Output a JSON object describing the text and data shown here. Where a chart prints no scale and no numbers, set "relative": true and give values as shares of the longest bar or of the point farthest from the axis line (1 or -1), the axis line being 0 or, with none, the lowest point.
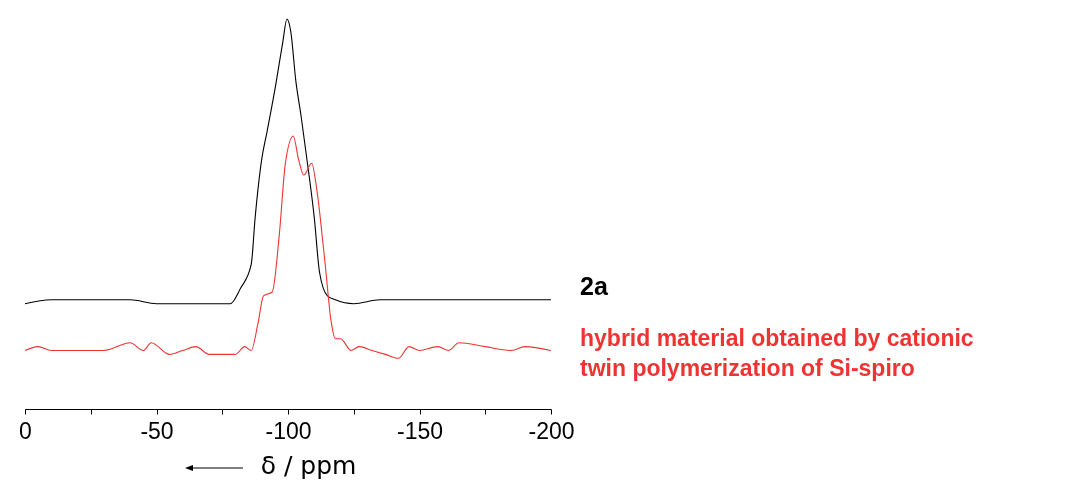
{
  "chart_data": {
    "type": "line",
    "xlabel": "δ / ppm",
    "relative": true,
    "legend": false,
    "xlim": [
      0,
      -200
    ],
    "xticks": [
      0,
      {
        "value": -25,
        "label": null
      },
      -50,
      {
        "value": -75,
        "label": null
      },
      -100,
      {
        "value": -125,
        "label": null
      },
      -150,
      {
        "value": -175,
        "label": null
      },
      -200
    ],
    "series": [
      {
        "name": "2a",
        "color": "#000000",
        "x": [
          0,
          -10,
          -25,
          -40,
          -50,
          -60,
          -70,
          -78,
          -82,
          -86,
          -87.5,
          -90,
          -92,
          -95.3,
          -98,
          -99.6,
          -101,
          -103,
          -105,
          -107,
          -110,
          -112,
          -115,
          -118,
          -125,
          -135,
          -150,
          -165,
          -180,
          -190,
          -200
        ],
        "values": [
          0.27,
          0.28,
          0.28,
          0.28,
          0.27,
          0.27,
          0.27,
          0.27,
          0.31,
          0.37,
          0.49,
          0.64,
          0.71,
          0.83,
          0.94,
          1.0,
          0.97,
          0.84,
          0.75,
          0.65,
          0.49,
          0.35,
          0.29,
          0.28,
          0.27,
          0.28,
          0.28,
          0.28,
          0.28,
          0.28,
          0.28
        ]
      },
      {
        "name": "hybrid material obtained by cationic\ntwin polymerization of Si-spiro",
        "color": "#ee3333",
        "x": [
          0,
          -5,
          -10,
          -20,
          -30,
          -40,
          -45,
          -48,
          -55,
          -60,
          -65,
          -70,
          -80,
          -83.5,
          -86,
          -88.6,
          -90.7,
          -94,
          -96.6,
          -99,
          -102,
          -104,
          -106,
          -109,
          -111,
          -114,
          -116.5,
          -118,
          -120,
          -124,
          -127,
          -132,
          -137,
          -142,
          -146,
          -150,
          -157,
          -161,
          -165,
          -175,
          -185,
          -190,
          -200
        ],
        "values": [
          0.15,
          0.16,
          0.15,
          0.15,
          0.15,
          0.17,
          0.15,
          0.17,
          0.14,
          0.15,
          0.16,
          0.14,
          0.14,
          0.16,
          0.15,
          0.22,
          0.29,
          0.3,
          0.44,
          0.63,
          0.7,
          0.64,
          0.6,
          0.63,
          0.56,
          0.38,
          0.22,
          0.18,
          0.18,
          0.15,
          0.16,
          0.15,
          0.14,
          0.13,
          0.16,
          0.15,
          0.16,
          0.15,
          0.17,
          0.16,
          0.15,
          0.16,
          0.15
        ]
      }
    ]
  }
}
